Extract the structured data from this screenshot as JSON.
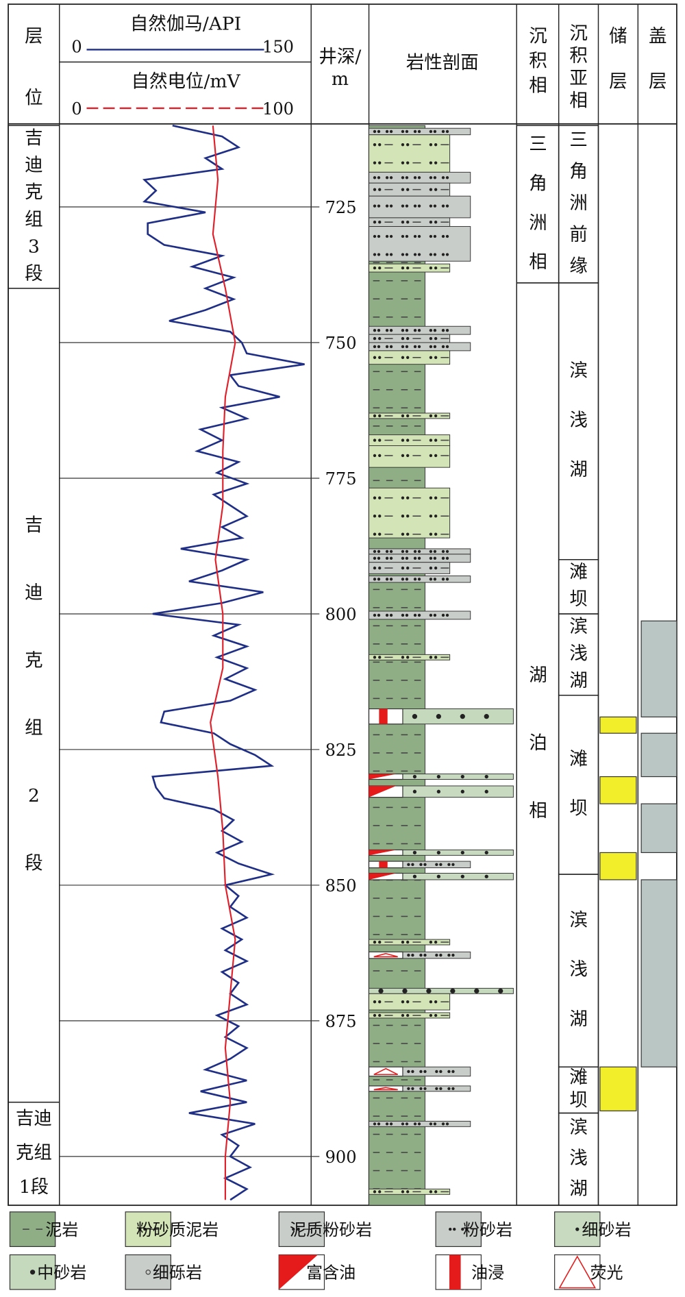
{
  "header": {
    "strata": "层位",
    "gamma": {
      "name": "自然伽马/API",
      "xlim": [
        0,
        150
      ]
    },
    "sp": {
      "name": "自然电位/mV",
      "xlim": [
        0,
        100
      ]
    },
    "depth": [
      "井深/",
      "m"
    ],
    "lithology": "岩性剖面",
    "facies": "沉积相",
    "subfacies": "沉积亚相",
    "reservoir": "储层",
    "caprock": "盖层"
  },
  "depth": {
    "lim": [
      710,
      909
    ],
    "ticks": [
      725,
      750,
      775,
      800,
      825,
      850,
      875,
      900
    ]
  },
  "logs": {
    "gamma": {
      "color": "#1f2f86",
      "depth": [
        710,
        712,
        714,
        716,
        718,
        720,
        722,
        724,
        726,
        728,
        730,
        732,
        734,
        736,
        738,
        740,
        742,
        744,
        746,
        748,
        750,
        752,
        754,
        756,
        758,
        760,
        762,
        764,
        766,
        768,
        770,
        772,
        774,
        776,
        778,
        780,
        782,
        784,
        786,
        788,
        790,
        792,
        794,
        796,
        798,
        800,
        802,
        804,
        806,
        808,
        810,
        812,
        814,
        816,
        818,
        820,
        822,
        824,
        826,
        828,
        830,
        832,
        834,
        836,
        838,
        840,
        842,
        844,
        846,
        848,
        850,
        852,
        854,
        856,
        858,
        860,
        862,
        864,
        866,
        868,
        870,
        872,
        874,
        876,
        878,
        880,
        882,
        884,
        886,
        888,
        890,
        892,
        894,
        896,
        898,
        900,
        902,
        904,
        906,
        908
      ],
      "values": [
        67,
        97,
        107,
        87,
        97,
        50,
        57,
        50,
        87,
        52,
        52,
        62,
        97,
        79,
        104,
        87,
        104,
        87,
        65,
        102,
        109,
        112,
        147,
        102,
        107,
        132,
        97,
        112,
        84,
        97,
        82,
        107,
        94,
        112,
        92,
        102,
        112,
        97,
        109,
        72,
        112,
        97,
        77,
        122,
        97,
        55,
        107,
        92,
        112,
        94,
        112,
        99,
        117,
        102,
        62,
        60,
        92,
        102,
        117,
        127,
        55,
        57,
        62,
        92,
        104,
        97,
        109,
        94,
        107,
        127,
        99,
        107,
        102,
        112,
        97,
        109,
        99,
        112,
        97,
        107,
        102,
        112,
        94,
        107,
        99,
        112,
        102,
        87,
        112,
        84,
        112,
        77,
        117,
        97,
        107,
        102,
        114,
        99,
        112,
        102
      ]
    },
    "sp": {
      "color": "#e0202a",
      "depth": [
        710,
        720,
        730,
        740,
        750,
        760,
        770,
        780,
        790,
        800,
        810,
        820,
        830,
        840,
        850,
        860,
        870,
        880,
        890,
        900,
        908
      ],
      "values": [
        61,
        63,
        61,
        66,
        70,
        66,
        65,
        65,
        62,
        65,
        65,
        60,
        63,
        65,
        66,
        70,
        68,
        66,
        68,
        66,
        66
      ]
    }
  },
  "strata": [
    {
      "lines": [
        "吉",
        "迪",
        "克",
        "组",
        "3",
        "段"
      ],
      "top": 710,
      "bottom": 740
    },
    {
      "lines": [
        "吉",
        "迪",
        "克",
        "组",
        "2",
        "段"
      ],
      "top": 740,
      "bottom": 890
    },
    {
      "lines": [
        "吉迪",
        "克组",
        "1段"
      ],
      "top": 890,
      "bottom": 909
    }
  ],
  "facies": [
    {
      "label": "三角洲相",
      "top": 710,
      "bottom": 739
    },
    {
      "label": "湖泊相",
      "top": 739,
      "bottom": 909
    }
  ],
  "subfacies": [
    {
      "label": "三角洲前缘",
      "top": 710,
      "bottom": 739
    },
    {
      "label": "滨浅湖",
      "top": 739,
      "bottom": 790
    },
    {
      "label": "滩坝",
      "top": 790,
      "bottom": 800
    },
    {
      "label": "滨浅湖",
      "top": 800,
      "bottom": 815
    },
    {
      "label": "滩坝",
      "top": 815,
      "bottom": 848
    },
    {
      "label": "滨浅湖",
      "top": 848,
      "bottom": 883.5
    },
    {
      "label": "滩坝",
      "top": 883.5,
      "bottom": 892
    },
    {
      "label": "滨浅湖",
      "top": 892,
      "bottom": 909
    }
  ],
  "reservoir": [
    {
      "top": 819,
      "bottom": 822
    },
    {
      "top": 830,
      "bottom": 835
    },
    {
      "top": 844,
      "bottom": 849
    },
    {
      "top": 883.5,
      "bottom": 891.6
    }
  ],
  "caprock": [
    {
      "top": 801.3,
      "bottom": 819
    },
    {
      "top": 822,
      "bottom": 830
    },
    {
      "top": 835,
      "bottom": 844
    },
    {
      "top": 849,
      "bottom": 883.5
    }
  ],
  "lithology": [
    {
      "top": 710,
      "bottom": 909,
      "rock": "泥岩"
    },
    {
      "top": 710.5,
      "bottom": 711.7,
      "rock": "粉砂岩"
    },
    {
      "top": 711.7,
      "bottom": 718.6,
      "rock": "粉砂质泥岩"
    },
    {
      "top": 718.6,
      "bottom": 720.6,
      "rock": "粉砂岩"
    },
    {
      "top": 720.6,
      "bottom": 723,
      "rock": "泥质粉砂岩"
    },
    {
      "top": 723,
      "bottom": 727,
      "rock": "粉砂岩"
    },
    {
      "top": 727,
      "bottom": 728.6,
      "rock": "泥质粉砂岩"
    },
    {
      "top": 728.6,
      "bottom": 735,
      "rock": "粉砂岩"
    },
    {
      "top": 735.5,
      "bottom": 737,
      "rock": "粉砂质泥岩"
    },
    {
      "top": 747,
      "bottom": 748.5,
      "rock": "粉砂岩"
    },
    {
      "top": 748.5,
      "bottom": 750,
      "rock": "泥质粉砂岩"
    },
    {
      "top": 750,
      "bottom": 751.5,
      "rock": "粉砂岩"
    },
    {
      "top": 751.5,
      "bottom": 754,
      "rock": "粉砂质泥岩"
    },
    {
      "top": 763,
      "bottom": 764,
      "rock": "粉砂质泥岩"
    },
    {
      "top": 767,
      "bottom": 769,
      "rock": "粉砂质泥岩"
    },
    {
      "top": 769,
      "bottom": 773,
      "rock": "粉砂质泥岩"
    },
    {
      "top": 776.8,
      "bottom": 786,
      "rock": "粉砂质泥岩"
    },
    {
      "top": 788,
      "bottom": 789,
      "rock": "粉砂岩"
    },
    {
      "top": 789,
      "bottom": 790.5,
      "rock": "粉砂岩"
    },
    {
      "top": 790.5,
      "bottom": 792.6,
      "rock": "泥质粉砂岩"
    },
    {
      "top": 793,
      "bottom": 794.2,
      "rock": "粉砂岩"
    },
    {
      "top": 799.5,
      "bottom": 801,
      "rock": "粉砂岩"
    },
    {
      "top": 807.5,
      "bottom": 808.5,
      "rock": "粉砂质泥岩"
    },
    {
      "top": 817.5,
      "bottom": 820.3,
      "rock": "中砂岩",
      "show": "油浸"
    },
    {
      "top": 829.5,
      "bottom": 830.5,
      "rock": "细砂岩",
      "show": "富含油"
    },
    {
      "top": 831.7,
      "bottom": 833.8,
      "rock": "细砂岩",
      "show": "富含油"
    },
    {
      "top": 843.5,
      "bottom": 844.5,
      "rock": "细砂岩",
      "show": "富含油"
    },
    {
      "top": 845.6,
      "bottom": 846.8,
      "rock": "粉砂岩",
      "show": "油浸"
    },
    {
      "top": 847.8,
      "bottom": 849,
      "rock": "细砂岩",
      "show": "富含油"
    },
    {
      "top": 860,
      "bottom": 861,
      "rock": "粉砂质泥岩"
    },
    {
      "top": 862.3,
      "bottom": 863.5,
      "rock": "粉砂岩",
      "show": "荧光"
    },
    {
      "top": 869,
      "bottom": 870,
      "rock": "中砂岩"
    },
    {
      "top": 870,
      "bottom": 873,
      "rock": "粉砂质泥岩"
    },
    {
      "top": 873.5,
      "bottom": 874.5,
      "rock": "粉砂质泥岩"
    },
    {
      "top": 883.5,
      "bottom": 885.2,
      "rock": "粉砂岩",
      "show": "荧光"
    },
    {
      "top": 887,
      "bottom": 888,
      "rock": "粉砂岩",
      "show": "荧光"
    },
    {
      "top": 893.5,
      "bottom": 894.5,
      "rock": "粉砂岩"
    },
    {
      "top": 906,
      "bottom": 907,
      "rock": "粉砂质泥岩"
    }
  ],
  "legend": [
    "泥岩",
    "粉砂质泥岩",
    "泥质粉砂岩",
    "粉砂岩",
    "细砂岩",
    "中砂岩",
    "细砾岩",
    "富含油",
    "油浸",
    "荧光"
  ]
}
